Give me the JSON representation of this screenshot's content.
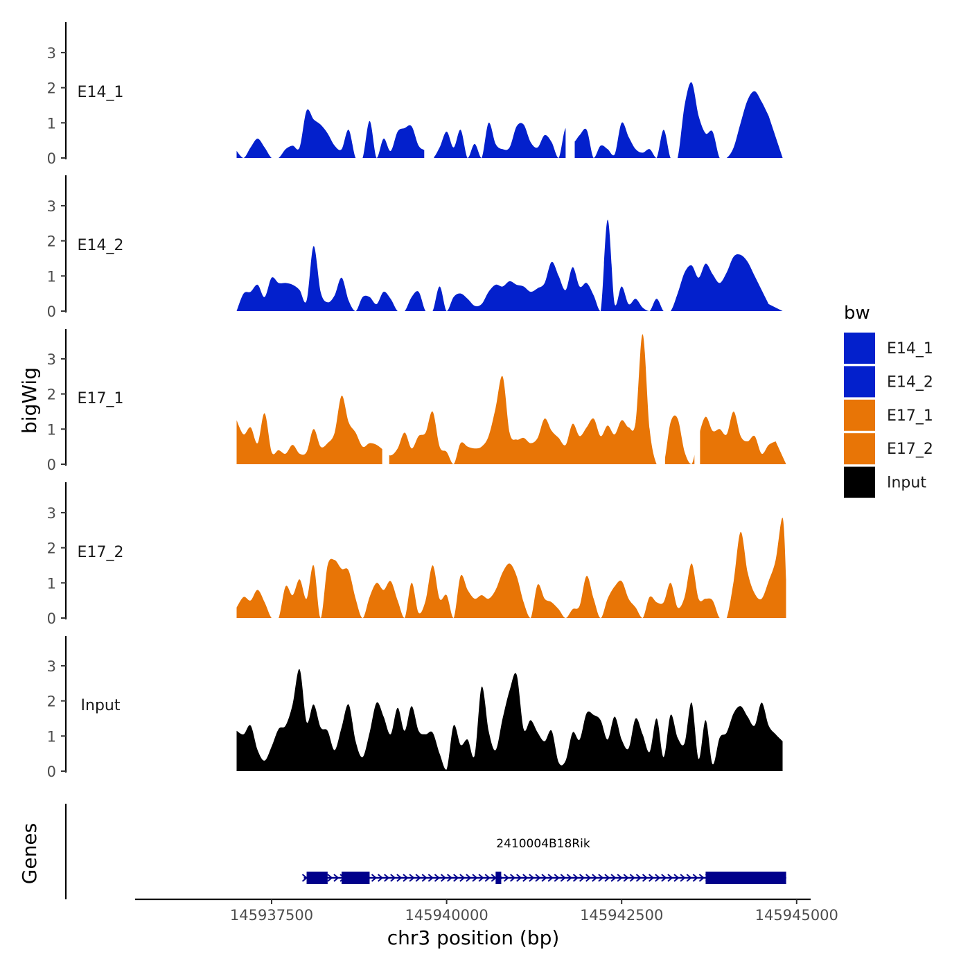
{
  "chart_data": {
    "type": "area",
    "title": "",
    "xlabel": "chr3 position (bp)",
    "ylabel": "bigWig",
    "genes_label": "Genes",
    "xlim": [
      145935550,
      145945200
    ],
    "x_ticks": [
      145937500,
      145940000,
      145942500,
      145945000
    ],
    "ylim": [
      0,
      3.8
    ],
    "y_ticks": [
      0,
      1,
      2,
      3
    ],
    "legend": {
      "title": "bw",
      "position": "right",
      "entries": [
        {
          "name": "E14_1",
          "color": "#0320CC"
        },
        {
          "name": "E14_2",
          "color": "#0320CC"
        },
        {
          "name": "E17_1",
          "color": "#E87506"
        },
        {
          "name": "E17_2",
          "color": "#E87506"
        },
        {
          "name": "Input",
          "color": "#000000"
        }
      ]
    },
    "tracks": [
      {
        "name": "E14_1",
        "color": "#0320CC",
        "x_start": 145937000,
        "x_end": 145944800,
        "step": 100,
        "values": [
          0.2,
          0.0,
          0.3,
          0.55,
          0.3,
          0.0,
          0.0,
          0.25,
          0.35,
          0.3,
          1.35,
          1.1,
          0.95,
          0.7,
          0.35,
          0.25,
          0.8,
          0.0,
          0.0,
          1.05,
          0.0,
          0.55,
          0.2,
          0.75,
          0.85,
          0.9,
          0.35,
          0.2,
          0.0,
          0.3,
          0.75,
          0.3,
          0.8,
          0.0,
          0.4,
          0.0,
          1.0,
          0.4,
          0.25,
          0.3,
          0.9,
          0.95,
          0.45,
          0.3,
          0.65,
          0.45,
          0.0,
          0.85,
          0.45,
          0.65,
          0.8,
          0.0,
          0.35,
          0.25,
          0.1,
          1.0,
          0.6,
          0.25,
          0.15,
          0.25,
          0.0,
          0.8,
          0.0,
          0.0,
          1.5,
          2.15,
          1.2,
          0.7,
          0.75,
          0.0,
          0.0,
          0.3,
          1.0,
          1.65,
          1.9,
          1.6,
          1.2
        ],
        "gaps": [
          [
            145939680,
            145939820
          ],
          [
            145941700,
            145941830
          ]
        ]
      },
      {
        "name": "E14_2",
        "color": "#0320CC",
        "x_start": 145937000,
        "x_end": 145944800,
        "step": 100,
        "values": [
          0.0,
          0.5,
          0.55,
          0.75,
          0.4,
          0.95,
          0.8,
          0.8,
          0.75,
          0.6,
          0.3,
          1.85,
          0.55,
          0.25,
          0.45,
          0.95,
          0.3,
          0.0,
          0.4,
          0.4,
          0.2,
          0.55,
          0.35,
          0.0,
          0.0,
          0.4,
          0.55,
          0.0,
          0.0,
          0.7,
          0.0,
          0.4,
          0.5,
          0.35,
          0.15,
          0.2,
          0.55,
          0.75,
          0.7,
          0.85,
          0.75,
          0.7,
          0.55,
          0.65,
          0.8,
          1.4,
          1.0,
          0.6,
          1.25,
          0.7,
          0.8,
          0.45,
          0.0,
          2.6,
          0.2,
          0.7,
          0.2,
          0.35,
          0.1,
          0.0,
          0.35,
          0.0,
          0.0,
          0.5,
          1.1,
          1.3,
          0.95,
          1.35,
          1.05,
          0.8,
          1.1,
          1.55,
          1.6,
          1.4,
          1.0,
          0.6,
          0.2
        ]
      },
      {
        "name": "E17_1",
        "color": "#E87506",
        "x_start": 145937000,
        "x_end": 145944850,
        "step": 100,
        "values": [
          1.25,
          0.85,
          1.05,
          0.6,
          1.45,
          0.35,
          0.4,
          0.3,
          0.55,
          0.3,
          0.35,
          1.0,
          0.5,
          0.6,
          0.9,
          1.95,
          1.2,
          0.9,
          0.5,
          0.6,
          0.55,
          0.4,
          0.25,
          0.45,
          0.9,
          0.45,
          0.8,
          0.9,
          1.5,
          0.5,
          0.35,
          0.0,
          0.6,
          0.5,
          0.45,
          0.5,
          0.8,
          1.6,
          2.5,
          0.9,
          0.7,
          0.75,
          0.6,
          0.75,
          1.3,
          0.95,
          0.75,
          0.55,
          1.15,
          0.8,
          1.05,
          1.3,
          0.8,
          1.1,
          0.85,
          1.25,
          1.05,
          1.2,
          3.7,
          1.0,
          0.0,
          0.0,
          1.2,
          1.3,
          0.35,
          0.0,
          0.8,
          1.35,
          0.95,
          1.0,
          0.85,
          1.5,
          0.8,
          0.65,
          0.8,
          0.3,
          0.55,
          0.65
        ],
        "gaps": [
          [
            145939080,
            145939180
          ],
          [
            145943020,
            145943120
          ],
          [
            145943540,
            145943620
          ]
        ]
      },
      {
        "name": "E17_2",
        "color": "#E87506",
        "x_start": 145937000,
        "x_end": 145944850,
        "step": 100,
        "values": [
          0.3,
          0.6,
          0.5,
          0.8,
          0.45,
          0.0,
          0.0,
          0.9,
          0.65,
          1.1,
          0.55,
          1.5,
          0.0,
          1.5,
          1.65,
          1.4,
          1.35,
          0.55,
          0.0,
          0.6,
          1.0,
          0.8,
          1.05,
          0.5,
          0.0,
          1.0,
          0.15,
          0.5,
          1.5,
          0.55,
          0.65,
          0.0,
          1.2,
          0.8,
          0.55,
          0.65,
          0.55,
          0.8,
          1.3,
          1.55,
          1.2,
          0.45,
          0.0,
          0.95,
          0.55,
          0.45,
          0.25,
          0.0,
          0.25,
          0.35,
          1.2,
          0.55,
          0.0,
          0.55,
          0.9,
          1.05,
          0.55,
          0.3,
          0.0,
          0.6,
          0.45,
          0.45,
          1.0,
          0.3,
          0.6,
          1.55,
          0.55,
          0.55,
          0.5,
          0.0,
          0.0,
          1.05,
          2.45,
          1.3,
          0.7,
          0.55,
          1.05,
          1.65,
          2.85,
          1.1
        ]
      },
      {
        "name": "Input",
        "color": "#000000",
        "x_start": 145937000,
        "x_end": 145944800,
        "step": 100,
        "values": [
          1.15,
          1.05,
          1.3,
          0.6,
          0.3,
          0.7,
          1.2,
          1.3,
          1.9,
          2.9,
          1.4,
          1.9,
          1.25,
          1.15,
          0.6,
          1.25,
          1.9,
          0.85,
          0.4,
          1.1,
          1.95,
          1.55,
          1.05,
          1.8,
          1.15,
          1.85,
          1.15,
          1.05,
          1.1,
          0.5,
          0.05,
          1.3,
          0.75,
          0.9,
          0.45,
          2.4,
          1.15,
          0.6,
          1.5,
          2.3,
          2.75,
          1.2,
          1.45,
          1.1,
          0.85,
          1.15,
          0.25,
          0.3,
          1.1,
          0.9,
          1.65,
          1.6,
          1.45,
          0.9,
          1.55,
          0.9,
          0.65,
          1.5,
          1.05,
          0.55,
          1.5,
          0.4,
          1.6,
          0.95,
          0.8,
          1.95,
          0.35,
          1.45,
          0.2,
          0.95,
          1.1,
          1.65,
          1.85,
          1.55,
          1.3,
          1.95,
          1.3,
          1.05,
          0.85
        ]
      }
    ],
    "gene": {
      "name": "2410004B18Rik",
      "strand": "+",
      "start": 145938000,
      "end": 145944850,
      "color": "#00008B",
      "exons": [
        [
          145938000,
          145938300
        ],
        [
          145938500,
          145938900
        ],
        [
          145940700,
          145940780
        ],
        [
          145943700,
          145944850
        ]
      ],
      "thick_exons": [
        [
          145938000,
          145938300
        ],
        [
          145938500,
          145938900
        ],
        [
          145940700,
          145940780
        ],
        [
          145943700,
          145944850
        ]
      ]
    }
  }
}
